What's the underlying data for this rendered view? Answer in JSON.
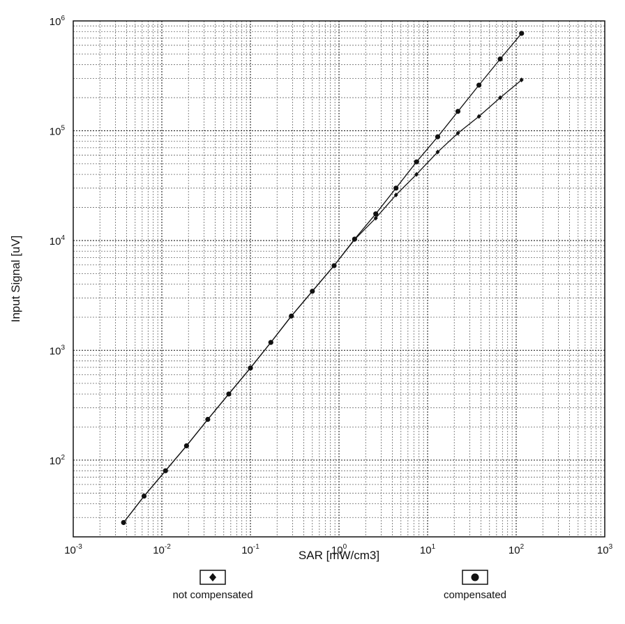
{
  "chart_data": {
    "type": "scatter",
    "xscale": "log",
    "yscale": "log",
    "xlim": [
      0.001,
      1000
    ],
    "ylim": [
      20,
      1000000
    ],
    "xlabel": "SAR [mW/cm3]",
    "ylabel": "Input Signal [uV]",
    "x_ticks": [
      {
        "base": "10",
        "exp": "-3",
        "value": 0.001
      },
      {
        "base": "10",
        "exp": "-2",
        "value": 0.01
      },
      {
        "base": "10",
        "exp": "-1",
        "value": 0.1
      },
      {
        "base": "10",
        "exp": "0",
        "value": 1
      },
      {
        "base": "10",
        "exp": "1",
        "value": 10
      },
      {
        "base": "10",
        "exp": "2",
        "value": 100
      },
      {
        "base": "10",
        "exp": "3",
        "value": 1000
      }
    ],
    "y_ticks": [
      {
        "base": "10",
        "exp": "2",
        "value": 100
      },
      {
        "base": "10",
        "exp": "3",
        "value": 1000
      },
      {
        "base": "10",
        "exp": "4",
        "value": 10000
      },
      {
        "base": "10",
        "exp": "5",
        "value": 100000
      },
      {
        "base": "10",
        "exp": "6",
        "value": 1000000
      }
    ],
    "grid": true,
    "series": [
      {
        "name": "not compensated",
        "marker": "diamond",
        "x": [
          0.0037,
          0.0063,
          0.011,
          0.019,
          0.033,
          0.057,
          0.1,
          0.17,
          0.29,
          0.5,
          0.88,
          1.5,
          2.6,
          4.4,
          7.5,
          13,
          22,
          38,
          66,
          115
        ],
        "y": [
          27,
          47,
          80,
          135,
          235,
          400,
          690,
          1180,
          2050,
          3450,
          5900,
          10200,
          16000,
          26000,
          40000,
          64000,
          95000,
          135000,
          200000,
          290000
        ]
      },
      {
        "name": "compensated",
        "marker": "circle",
        "x": [
          0.0037,
          0.0063,
          0.011,
          0.019,
          0.033,
          0.057,
          0.1,
          0.17,
          0.29,
          0.5,
          0.88,
          1.5,
          2.6,
          4.4,
          7.5,
          13,
          22,
          38,
          66,
          115
        ],
        "y": [
          27,
          47,
          80,
          135,
          235,
          400,
          690,
          1180,
          2050,
          3450,
          5900,
          10300,
          17500,
          30000,
          52000,
          88000,
          150000,
          260000,
          450000,
          770000
        ]
      }
    ],
    "legend": {
      "placement": "bottom",
      "items": [
        {
          "label": "not compensated",
          "marker": "diamond"
        },
        {
          "label": "compensated",
          "marker": "circle"
        }
      ]
    }
  }
}
